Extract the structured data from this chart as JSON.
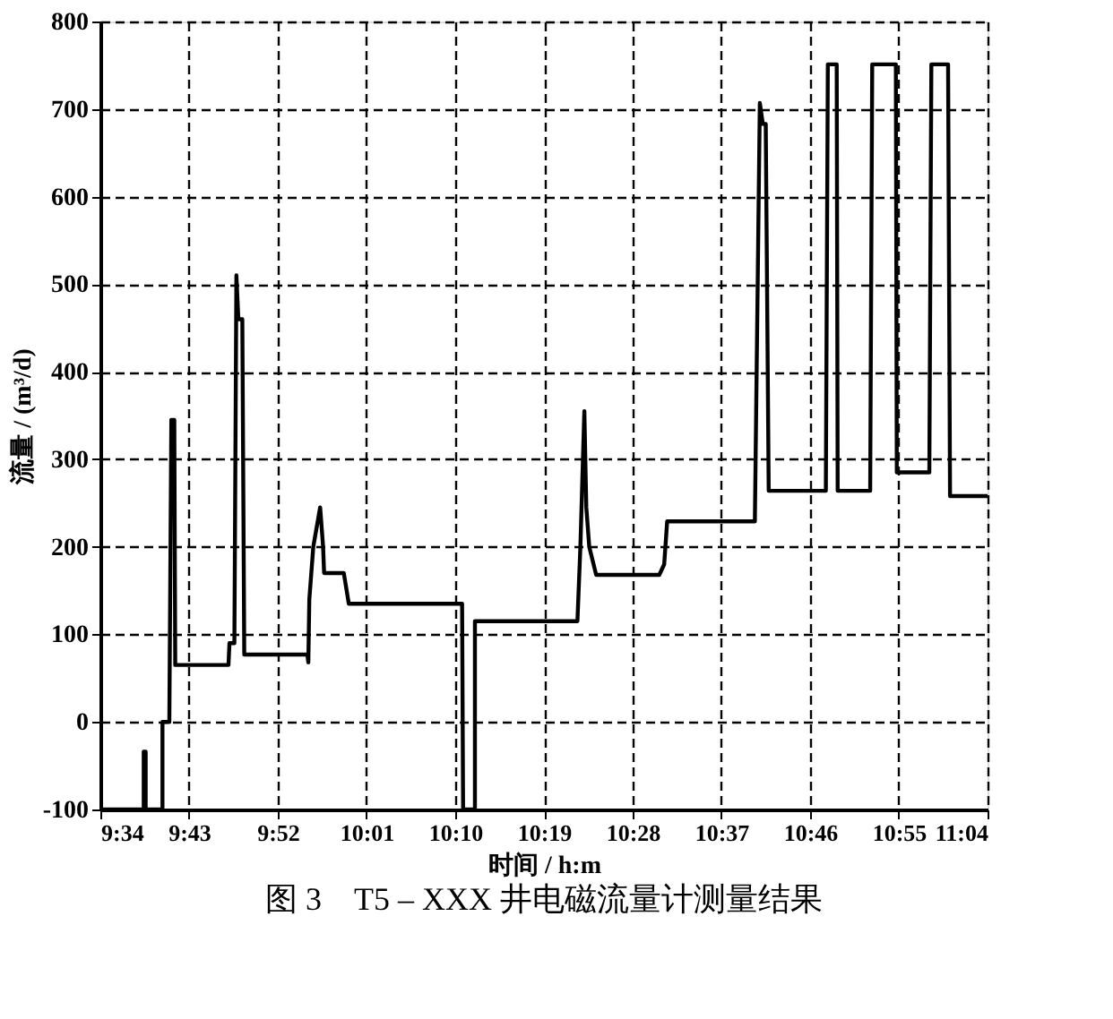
{
  "chart_data": {
    "type": "line",
    "title": "图 3　T5 – XXX 井电磁流量计测量结果",
    "xlabel": "时间 / h:m",
    "ylabel": "流量 / (m³/d)",
    "x": [
      9.5667,
      9.64,
      9.64,
      9.6433,
      9.6433,
      9.6717,
      9.6717,
      9.6833,
      9.6867,
      9.6917,
      9.6933,
      9.7833,
      9.785,
      9.7933,
      9.7967,
      9.8,
      9.8067,
      9.81,
      9.9167,
      9.9183,
      9.92,
      9.9267,
      9.9383,
      9.9433,
      9.945,
      9.9783,
      9.9867,
      10.1783,
      10.18,
      10.2,
      10.2,
      10.3733,
      10.3783,
      10.385,
      10.3883,
      10.3933,
      10.405,
      10.5117,
      10.52,
      10.525,
      10.6733,
      10.6817,
      10.6867,
      10.6917,
      10.6967,
      10.7933,
      10.7967,
      10.8117,
      10.8133,
      10.8683,
      10.8717,
      10.9117,
      10.9133,
      10.9683,
      10.9717,
      11.0,
      11.0033,
      11.0667
    ],
    "series": [
      {
        "color": "#000000",
        "values": [
          -100,
          -100,
          -34,
          -34,
          -100,
          -100,
          0,
          0,
          345,
          345,
          65,
          65,
          90,
          90,
          510,
          460,
          460,
          77,
          77,
          68,
          140,
          200,
          245,
          200,
          170,
          170,
          135,
          135,
          -100,
          -100,
          115,
          115,
          200,
          355,
          245,
          200,
          168,
          168,
          180,
          229,
          229,
          707,
          683,
          683,
          264,
          264,
          751,
          751,
          264,
          264,
          751,
          751,
          285,
          285,
          751,
          751,
          258,
          258
        ]
      }
    ],
    "xlim": [
      9.5667,
      11.0667
    ],
    "xticks": [
      {
        "value": 9.5667,
        "label": "9:34"
      },
      {
        "value": 9.7167,
        "label": "9:43"
      },
      {
        "value": 9.8667,
        "label": "9:52"
      },
      {
        "value": 10.0167,
        "label": "10:01"
      },
      {
        "value": 10.1667,
        "label": "10:10"
      },
      {
        "value": 10.3167,
        "label": "10:19"
      },
      {
        "value": 10.4667,
        "label": "10:28"
      },
      {
        "value": 10.6167,
        "label": "10:37"
      },
      {
        "value": 10.7667,
        "label": "10:46"
      },
      {
        "value": 10.9167,
        "label": "10:55"
      },
      {
        "value": 11.0667,
        "label": "11:04"
      }
    ],
    "ylim": [
      -100,
      800
    ],
    "yticks": [
      -100,
      0,
      100,
      200,
      300,
      400,
      500,
      600,
      700,
      800
    ],
    "grid": true,
    "line_style": "solid",
    "marker": "none"
  }
}
